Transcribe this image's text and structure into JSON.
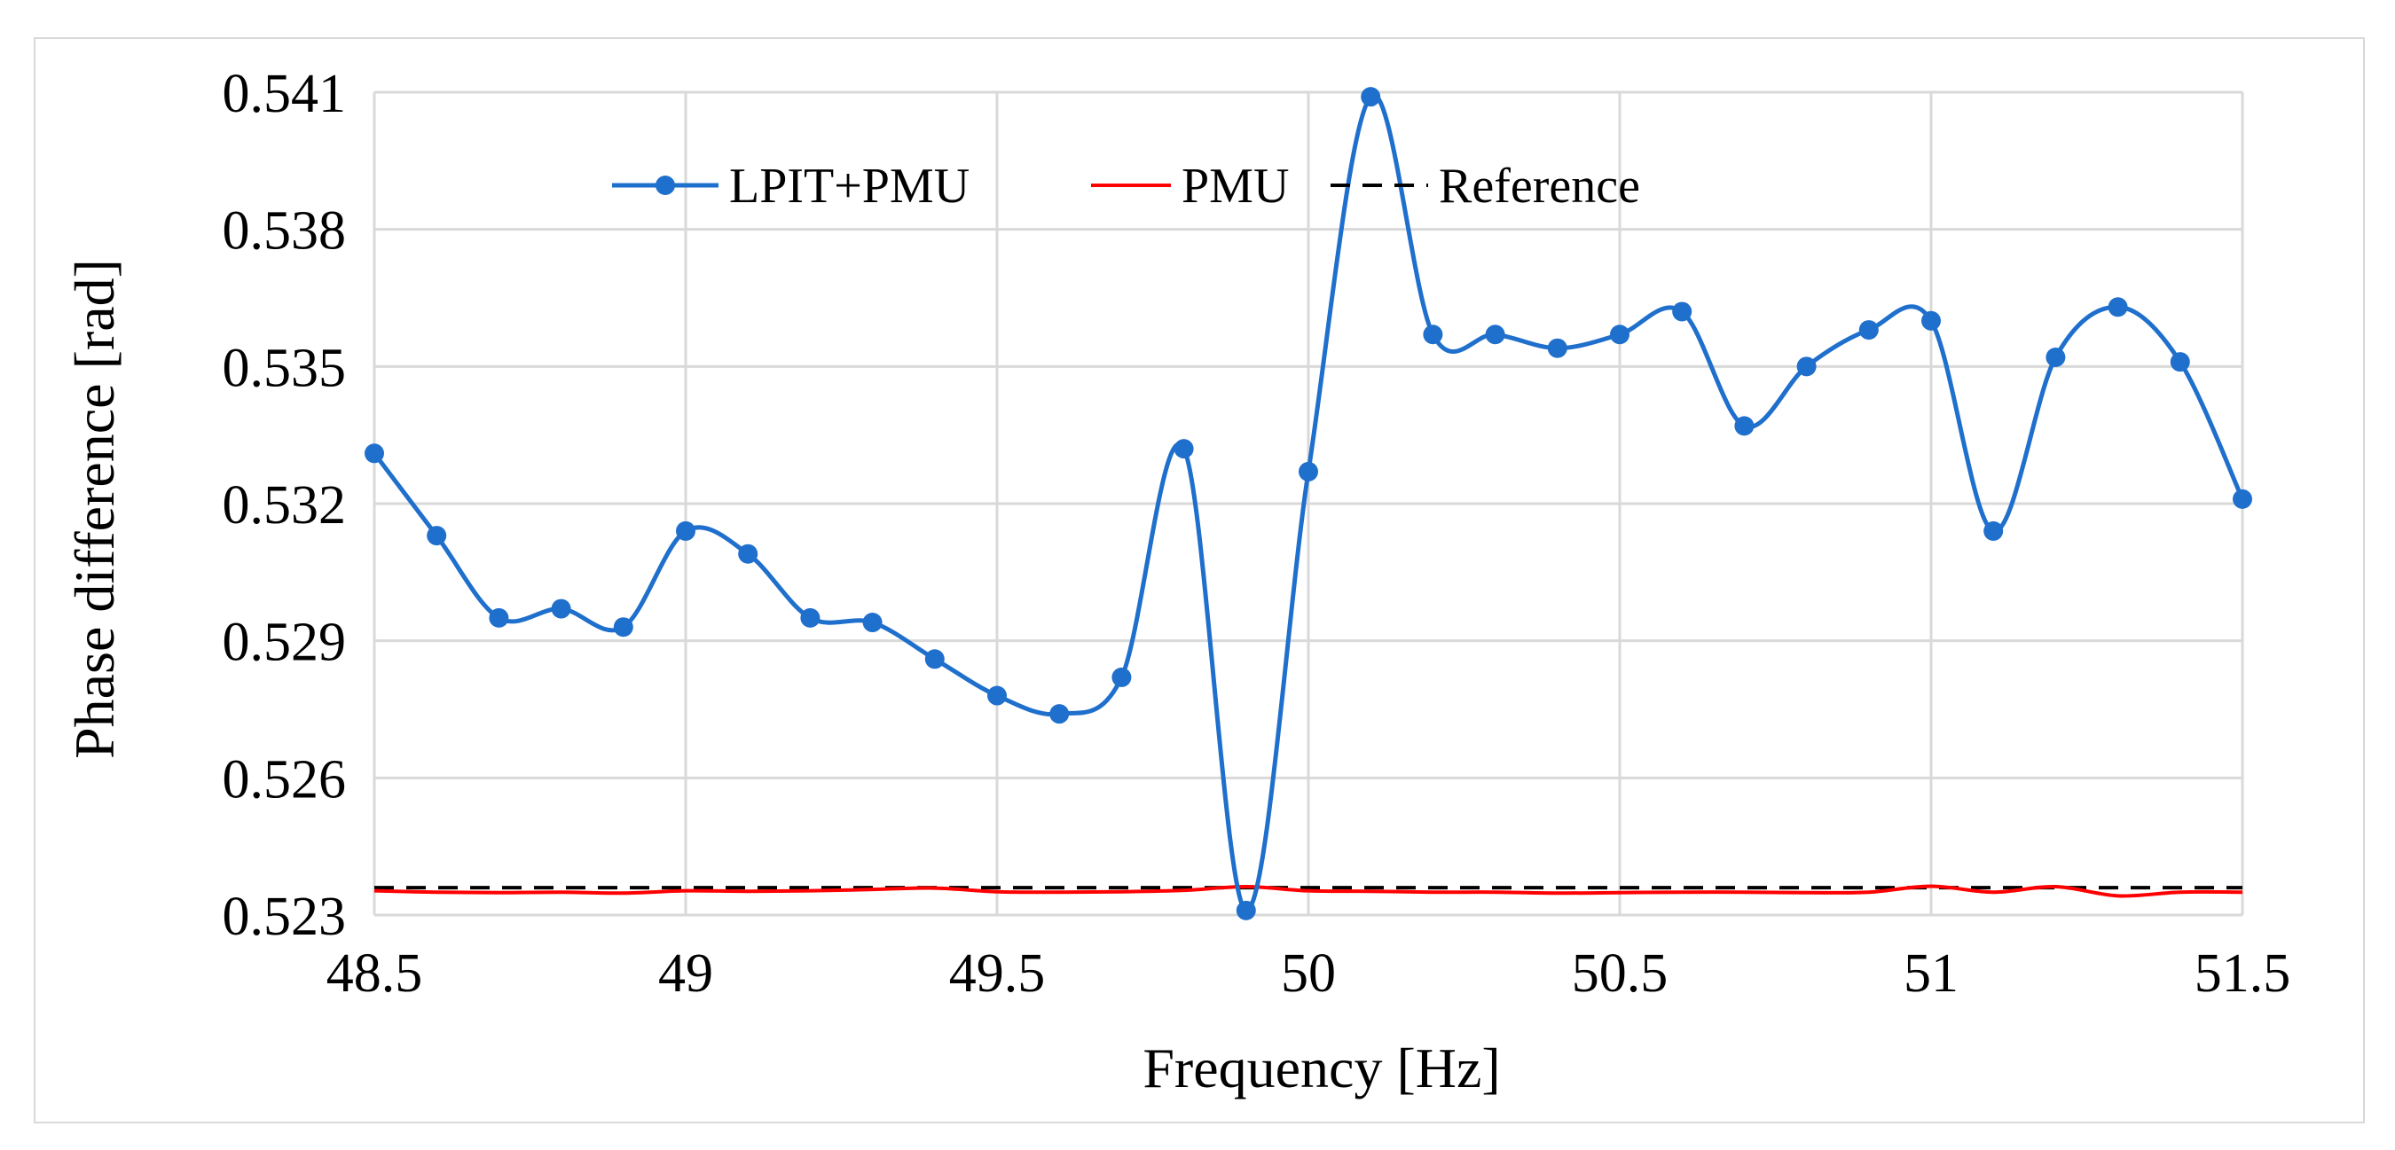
{
  "chart_data": {
    "type": "line",
    "title": "",
    "xlabel": "Frequency [Hz]",
    "ylabel": "Phase difference [rad]",
    "xlim": [
      48.5,
      51.5
    ],
    "ylim": [
      0.523,
      0.541
    ],
    "x_ticks": [
      "48.5",
      "49",
      "49.5",
      "50",
      "50.5",
      "51",
      "51.5"
    ],
    "y_ticks": [
      "0.523",
      "0.526",
      "0.529",
      "0.532",
      "0.535",
      "0.538",
      "0.541"
    ],
    "x_tick_values": [
      48.5,
      49,
      49.5,
      50,
      50.5,
      51,
      51.5
    ],
    "y_tick_values": [
      0.523,
      0.526,
      0.529,
      0.532,
      0.535,
      0.538,
      0.541
    ],
    "grid": true,
    "legend_position": "top",
    "x": [
      48.5,
      48.6,
      48.7,
      48.8,
      48.9,
      49.0,
      49.1,
      49.2,
      49.3,
      49.4,
      49.5,
      49.6,
      49.7,
      49.8,
      49.9,
      50.0,
      50.1,
      50.2,
      50.3,
      50.4,
      50.5,
      50.6,
      50.7,
      50.8,
      50.9,
      51.0,
      51.1,
      51.2,
      51.3,
      51.4,
      51.5
    ],
    "series": [
      {
        "name": "LPIT+PMU",
        "color": "#1f6fcc",
        "marker": "circle",
        "style": "solid",
        "values": [
          0.5331,
          0.5313,
          0.5295,
          0.5297,
          0.5293,
          0.5314,
          0.5309,
          0.5295,
          0.5294,
          0.5286,
          0.5278,
          0.5274,
          0.5282,
          0.5332,
          0.5231,
          0.5327,
          0.5409,
          0.5357,
          0.5357,
          0.5354,
          0.5357,
          0.5362,
          0.5337,
          0.535,
          0.5358,
          0.536,
          0.5314,
          0.5352,
          0.5363,
          0.5351,
          0.5321
        ]
      },
      {
        "name": "PMU",
        "color": "#ff0000",
        "marker": "none",
        "style": "solid",
        "values": [
          0.52353,
          0.5235,
          0.52349,
          0.5235,
          0.52348,
          0.52353,
          0.52352,
          0.52353,
          0.52356,
          0.52359,
          0.52351,
          0.5235,
          0.52351,
          0.52354,
          0.52362,
          0.52353,
          0.52352,
          0.5235,
          0.5235,
          0.52348,
          0.52349,
          0.5235,
          0.5235,
          0.52349,
          0.5235,
          0.52363,
          0.5235,
          0.52362,
          0.52342,
          0.5235,
          0.5235
        ]
      },
      {
        "name": "Reference",
        "color": "#000000",
        "marker": "none",
        "style": "dashed",
        "values": [
          0.5236,
          0.5236,
          0.5236,
          0.5236,
          0.5236,
          0.5236,
          0.5236,
          0.5236,
          0.5236,
          0.5236,
          0.5236,
          0.5236,
          0.5236,
          0.5236,
          0.5236,
          0.5236,
          0.5236,
          0.5236,
          0.5236,
          0.5236,
          0.5236,
          0.5236,
          0.5236,
          0.5236,
          0.5236,
          0.5236,
          0.5236,
          0.5236,
          0.5236,
          0.5236,
          0.5236
        ]
      }
    ]
  }
}
